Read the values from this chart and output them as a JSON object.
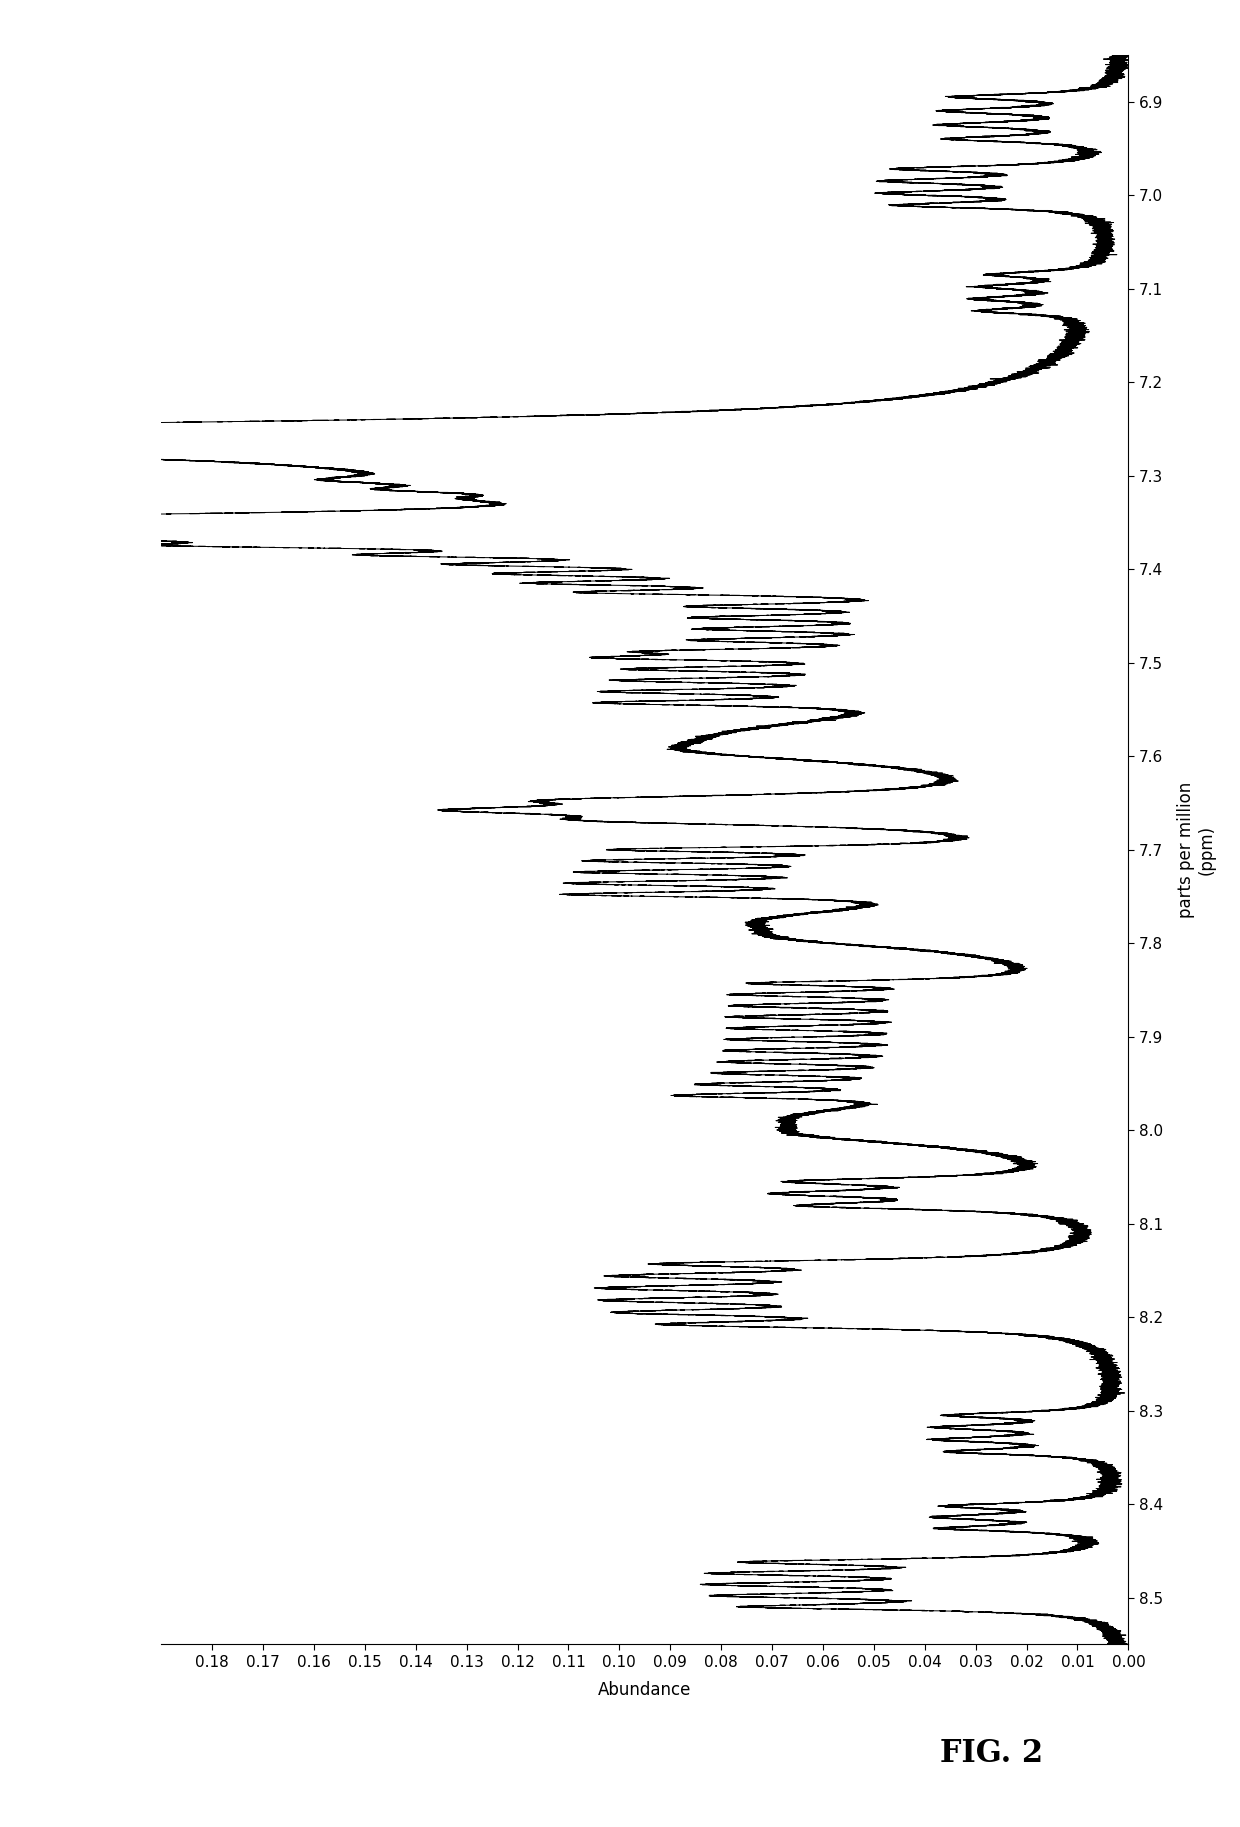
{
  "xlabel_line1": "parts per million",
  "xlabel_line2": "(ppm)",
  "ylabel": "Abundance",
  "figure_label": "FIG. 2",
  "ppm_lim": [
    6.85,
    8.55
  ],
  "abundance_lim": [
    0,
    0.19
  ],
  "ppm_ticks": [
    6.9,
    7.0,
    7.1,
    7.2,
    7.3,
    7.4,
    7.5,
    7.6,
    7.7,
    7.8,
    7.9,
    8.0,
    8.1,
    8.2,
    8.3,
    8.4,
    8.5
  ],
  "abundance_ticks": [
    0,
    0.01,
    0.02,
    0.03,
    0.04,
    0.05,
    0.06,
    0.07,
    0.08,
    0.09,
    0.1,
    0.11,
    0.12,
    0.13,
    0.14,
    0.15,
    0.16,
    0.17,
    0.18
  ],
  "line_color": "#000000",
  "background_color": "#ffffff",
  "figsize": [
    12.4,
    18.27
  ],
  "dpi": 100
}
